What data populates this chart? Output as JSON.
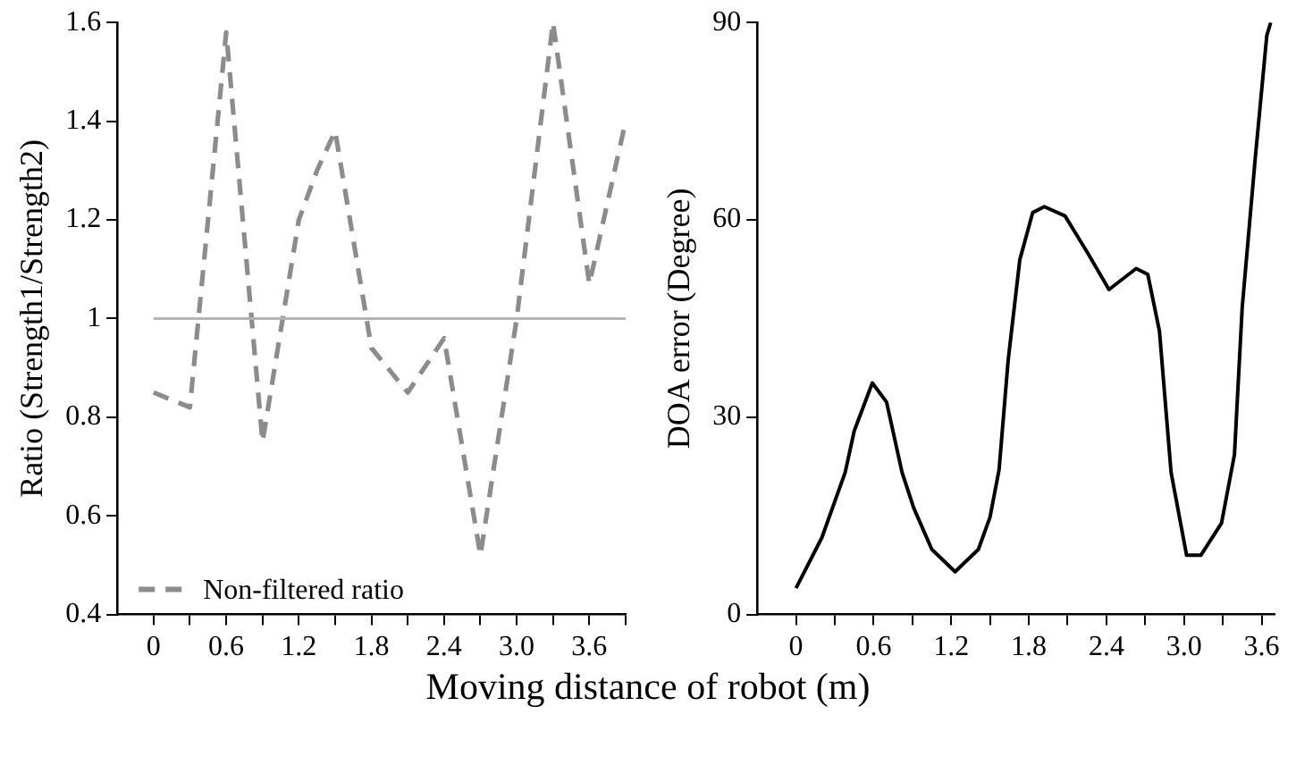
{
  "chart_data": [
    {
      "type": "line",
      "xlabel": "Moving distance of robot (m)",
      "ylabel": "Ratio (Strength1/Strength2)",
      "legend": "bottom left",
      "line_style": "dashed",
      "marker": "none",
      "grid": false,
      "xlim": [
        -0.3,
        3.9
      ],
      "xticks": [
        0,
        {
          "value": 0.3,
          "label": null
        },
        0.6,
        {
          "value": 0.9,
          "label": null
        },
        1.2,
        {
          "value": 1.5,
          "label": null
        },
        1.8,
        {
          "value": 2.1,
          "label": null
        },
        2.4,
        {
          "value": 2.7,
          "label": null
        },
        {
          "value": 3,
          "label": "3.0"
        },
        {
          "value": 3.3,
          "label": null
        },
        3.6,
        {
          "value": 3.9,
          "label": null
        }
      ],
      "ylim": [
        0.4,
        1.6
      ],
      "yticks": [
        0.4,
        0.6,
        0.8,
        1,
        1.2,
        1.4,
        1.6
      ],
      "ref_lines": [
        {
          "axis": "y",
          "value": 1,
          "color": "#b3b3b3"
        }
      ],
      "series": [
        {
          "name": "Non-filtered ratio",
          "color": "#8c8c8c",
          "x": [
            0,
            0.3,
            0.6,
            0.9,
            1.2,
            1.35,
            1.5,
            1.8,
            2.1,
            2.4,
            2.7,
            3,
            3.3,
            3.6,
            3.9
          ],
          "values": [
            0.85,
            0.82,
            1.58,
            0.75,
            1.2,
            1.3,
            1.38,
            0.94,
            0.85,
            0.96,
            0.52,
            1,
            1.6,
            1.07,
            1.4
          ]
        }
      ]
    },
    {
      "type": "line",
      "ylabel": "DOA error (Degree)",
      "legend": false,
      "line_style": "solid",
      "marker": "none",
      "grid": false,
      "xlim": [
        -0.3,
        3.7
      ],
      "xticks": [
        0,
        {
          "value": 0.3,
          "label": null
        },
        0.6,
        {
          "value": 0.9,
          "label": null
        },
        1.2,
        {
          "value": 1.5,
          "label": null
        },
        1.8,
        {
          "value": 2.1,
          "label": null
        },
        2.4,
        {
          "value": 2.7,
          "label": null
        },
        {
          "value": 3,
          "label": "3.0"
        },
        {
          "value": 3.3,
          "label": null
        },
        3.6
      ],
      "ylim": [
        0,
        90
      ],
      "yticks": [
        0,
        30,
        60,
        90
      ],
      "series": [
        {
          "color": "#000000",
          "x": [
            0,
            0.2,
            0.38,
            0.45,
            0.59,
            0.7,
            0.82,
            0.91,
            1.05,
            1.23,
            1.41,
            1.5,
            1.57,
            1.64,
            1.73,
            1.83,
            1.92,
            2.08,
            2.26,
            2.42,
            2.63,
            2.72,
            2.81,
            2.9,
            3.02,
            3.13,
            3.29,
            3.39,
            3.45,
            3.55,
            3.64,
            3.67
          ],
          "values": [
            4,
            11.7,
            21.6,
            27.9,
            35.2,
            32.3,
            21.6,
            16.2,
            9.9,
            6.5,
            9.9,
            14.8,
            22,
            38.6,
            53.9,
            61.1,
            62,
            60.6,
            54.8,
            49.4,
            52.6,
            51.7,
            43.1,
            21.6,
            9,
            9,
            13.9,
            24.3,
            46.7,
            69.2,
            88,
            90
          ]
        }
      ]
    }
  ]
}
